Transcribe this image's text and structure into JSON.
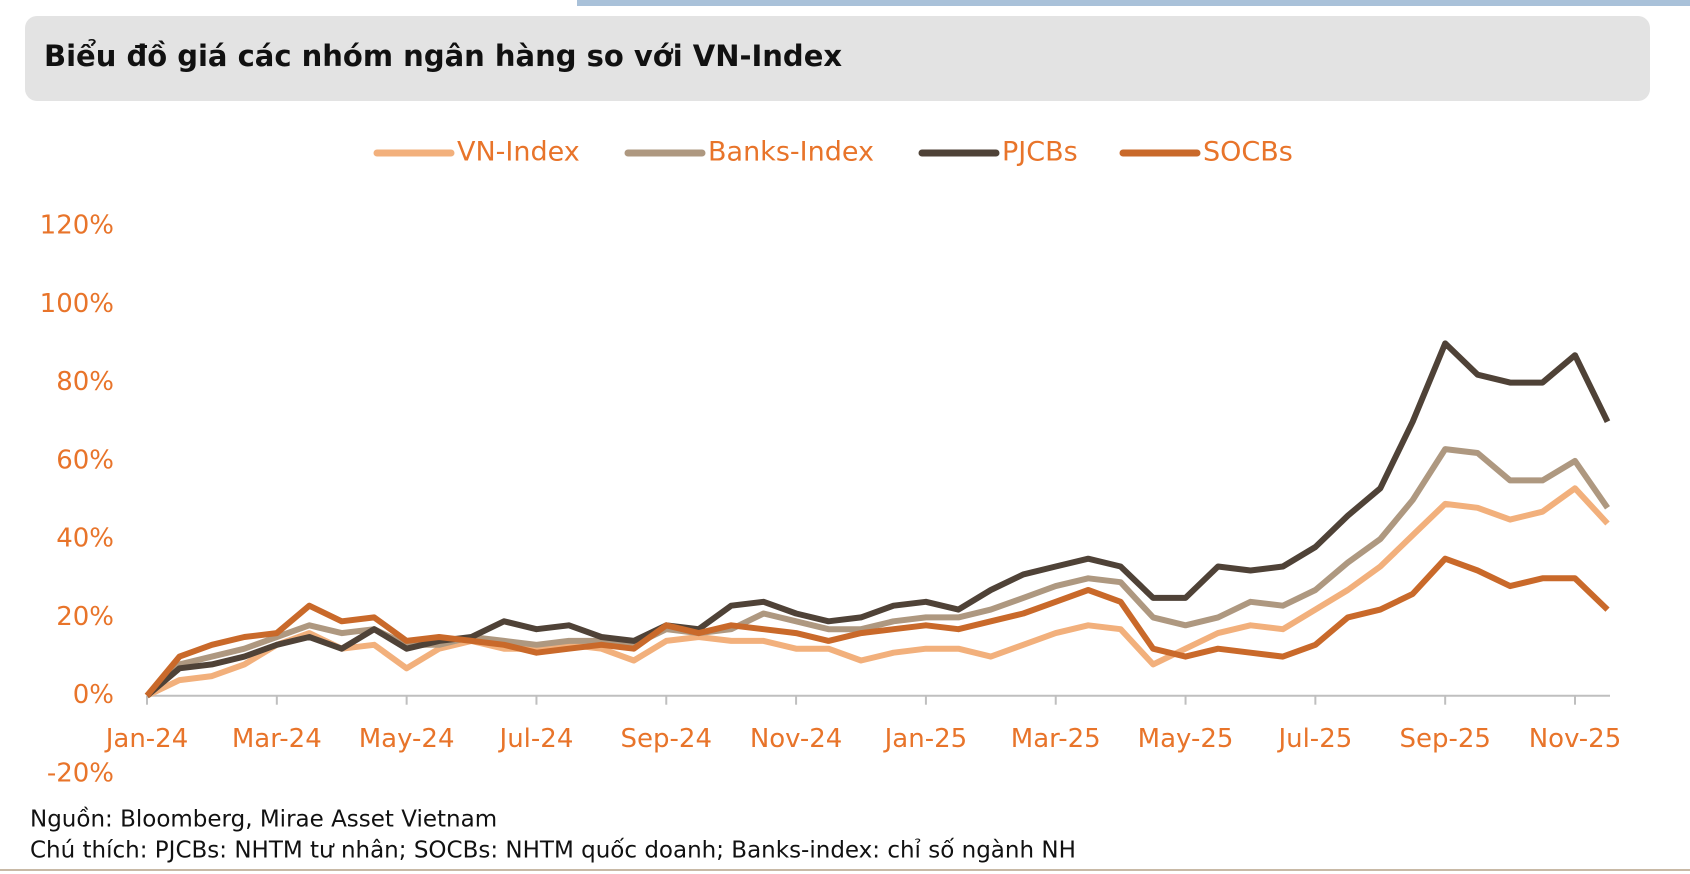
{
  "chart_data": {
    "type": "line",
    "title": "Biểu đồ giá các nhóm ngân hàng so với VN-Index",
    "categories": [
      "Jan-24",
      null,
      null,
      null,
      "Mar-24",
      null,
      null,
      null,
      "May-24",
      null,
      null,
      null,
      "Jul-24",
      null,
      null,
      null,
      "Sep-24",
      null,
      null,
      null,
      "Nov-24",
      null,
      null,
      null,
      "Jan-25",
      null,
      null,
      null,
      "Mar-25",
      null,
      null,
      null,
      "May-25",
      null,
      null,
      null,
      "Jul-25",
      null,
      null,
      null,
      "Sep-25",
      null,
      null,
      null,
      "Nov-25",
      null
    ],
    "series": [
      {
        "name": "VN-Index",
        "color": "#f2b07c",
        "values": [
          0,
          4,
          5,
          8,
          13,
          16,
          12,
          13,
          7,
          12,
          14,
          12,
          12,
          13,
          12,
          9,
          14,
          15,
          14,
          14,
          12,
          12,
          9,
          11,
          12,
          12,
          10,
          13,
          16,
          18,
          17,
          8,
          12,
          16,
          18,
          17,
          22,
          27,
          33,
          41,
          49,
          48,
          45,
          47,
          53,
          44
        ]
      },
      {
        "name": "Banks-Index",
        "color": "#ae9880",
        "values": [
          0,
          8,
          10,
          12,
          15,
          18,
          16,
          17,
          13,
          13,
          15,
          14,
          13,
          14,
          14,
          13,
          17,
          16,
          17,
          21,
          19,
          17,
          17,
          19,
          20,
          20,
          22,
          25,
          28,
          30,
          29,
          20,
          18,
          20,
          24,
          23,
          27,
          34,
          40,
          50,
          63,
          62,
          55,
          55,
          60,
          48
        ]
      },
      {
        "name": "PJCBs",
        "color": "#4f4237",
        "values": [
          0,
          7,
          8,
          10,
          13,
          15,
          12,
          17,
          12,
          14,
          15,
          19,
          17,
          18,
          15,
          14,
          18,
          17,
          23,
          24,
          21,
          19,
          20,
          23,
          24,
          22,
          27,
          31,
          33,
          35,
          33,
          25,
          25,
          33,
          32,
          33,
          38,
          46,
          53,
          70,
          90,
          82,
          80,
          80,
          87,
          70
        ]
      },
      {
        "name": "SOCBs",
        "color": "#c9692a",
        "values": [
          0,
          10,
          13,
          15,
          16,
          23,
          19,
          20,
          14,
          15,
          14,
          13,
          11,
          12,
          13,
          12,
          18,
          16,
          18,
          17,
          16,
          14,
          16,
          17,
          18,
          17,
          19,
          21,
          24,
          27,
          24,
          12,
          10,
          12,
          11,
          10,
          13,
          20,
          22,
          26,
          35,
          32,
          28,
          30,
          30,
          22
        ]
      }
    ],
    "ylim": [
      -20,
      120
    ],
    "yticks": [
      {
        "value": -20,
        "label": "-20%"
      },
      {
        "value": 0,
        "label": "0%"
      },
      {
        "value": 20,
        "label": "20%"
      },
      {
        "value": 40,
        "label": "40%"
      },
      {
        "value": 60,
        "label": "60%"
      },
      {
        "value": 80,
        "label": "80%"
      },
      {
        "value": 100,
        "label": "100%"
      },
      {
        "value": 120,
        "label": "120%"
      }
    ],
    "grid": false,
    "legend": "top",
    "label_color": "#e8742a",
    "source": "Nguồn: Bloomberg, Mirae Asset Vietnam",
    "note": "Chú thích: PJCBs: NHTM tư nhân; SOCBs: NHTM quốc doanh; Banks-index: chỉ số ngành NH"
  }
}
